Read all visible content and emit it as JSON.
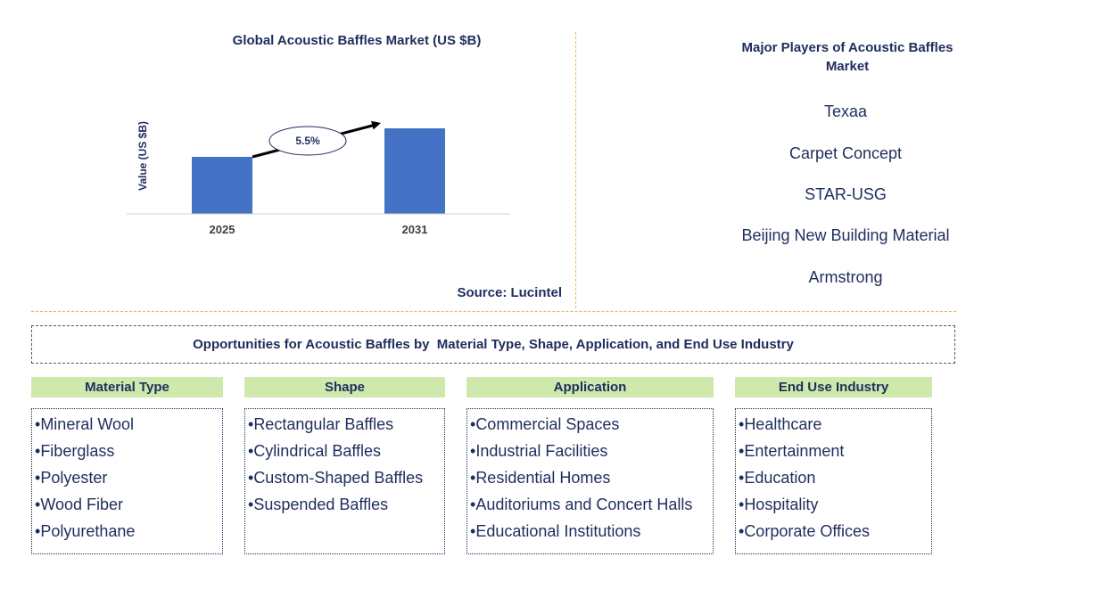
{
  "chart_data": {
    "type": "bar",
    "title": "Global Acoustic Baffles Market (US $B)",
    "categories": [
      "2025",
      "2031"
    ],
    "values": [
      0.64,
      0.96
    ],
    "ylabel": "Value (US $B)",
    "xlabel": "",
    "ylim": [
      0,
      1.3
    ],
    "annotation": "5.5%",
    "bar_color": "#4472c4",
    "source": "Source: Lucintel"
  },
  "players": {
    "title": "Major Players of Acoustic Baffles Market",
    "items": [
      "Texaa",
      "Carpet Concept",
      "STAR-USG",
      "Beijing New Building Material",
      "Armstrong"
    ]
  },
  "opportunities": {
    "title": "Opportunities for Acoustic Baffles by  Material Type, Shape, Application, and End Use Industry",
    "categories": [
      {
        "title": "Material Type",
        "items": [
          "Mineral Wool",
          "Fiberglass",
          "Polyester",
          "Wood Fiber",
          "Polyurethane"
        ]
      },
      {
        "title": "Shape",
        "items": [
          "Rectangular Baffles",
          "Cylindrical Baffles",
          "Custom-Shaped Baffles",
          "Suspended Baffles"
        ]
      },
      {
        "title": "Application",
        "items": [
          "Commercial Spaces",
          "Industrial Facilities",
          "Residential Homes",
          "Auditoriums and Concert Halls",
          "Educational Institutions"
        ]
      },
      {
        "title": "End Use Industry",
        "items": [
          "Healthcare",
          "Entertainment",
          "Education",
          "Hospitality",
          "Corporate Offices"
        ]
      }
    ]
  },
  "colors": {
    "accent_green": "#cfe9ad",
    "separator": "#e8b84a",
    "text": "#1f2d5c"
  }
}
